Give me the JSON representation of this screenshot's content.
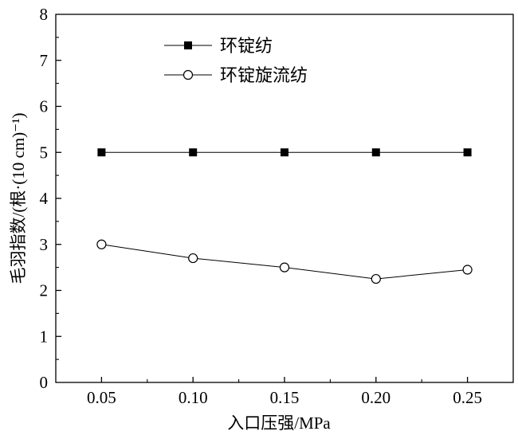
{
  "chart_data": {
    "type": "line",
    "x": [
      0.05,
      0.1,
      0.15,
      0.2,
      0.25
    ],
    "x_tick_labels": [
      "0.05",
      "0.10",
      "0.15",
      "0.20",
      "0.25"
    ],
    "y_ticks": [
      0,
      1,
      2,
      3,
      4,
      5,
      6,
      7,
      8
    ],
    "xlim": [
      0.025,
      0.275
    ],
    "ylim": [
      0,
      8
    ],
    "xlabel": "入口压强/MPa",
    "ylabel": "毛羽指数/(根·(10 cm)⁻¹)",
    "grid": false,
    "legend_position": "top-right",
    "series": [
      {
        "name": "环锭纺",
        "marker": "filled-square",
        "color": "#000000",
        "values": [
          5,
          5,
          5,
          5,
          5
        ]
      },
      {
        "name": "环锭旋流纺",
        "marker": "open-circle",
        "color": "#000000",
        "values": [
          3.0,
          2.7,
          2.5,
          2.25,
          2.45
        ]
      }
    ]
  }
}
